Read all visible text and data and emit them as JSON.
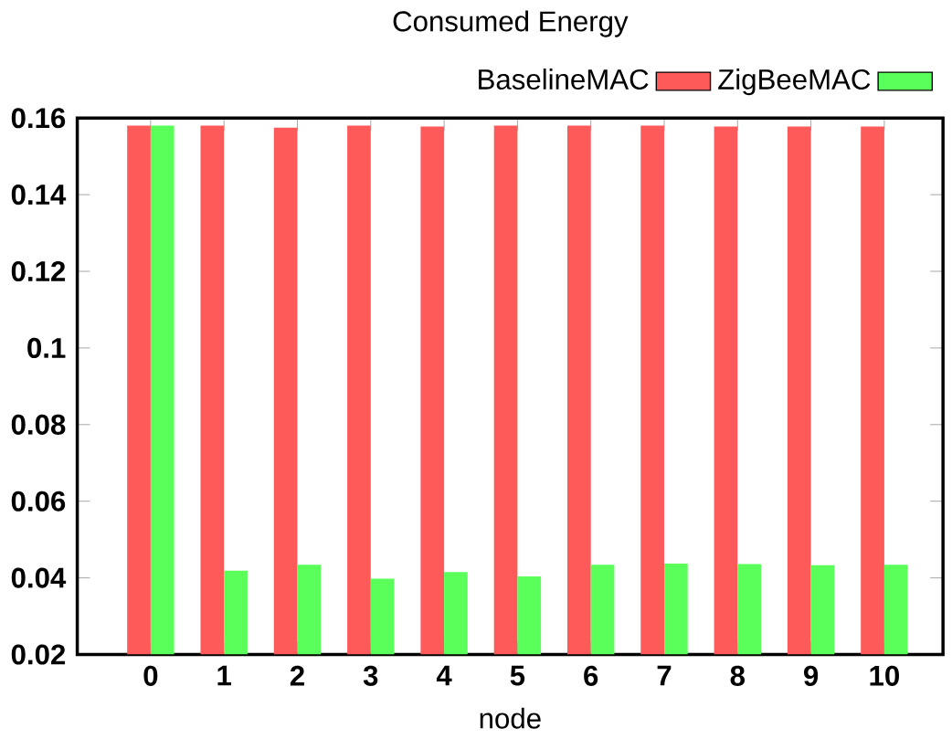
{
  "chart_data": {
    "type": "bar",
    "title": "Consumed Energy",
    "xlabel": "node",
    "categories": [
      "0",
      "1",
      "2",
      "3",
      "4",
      "5",
      "6",
      "7",
      "8",
      "9",
      "10"
    ],
    "series": [
      {
        "name": "BaselineMAC",
        "color": "#ff5a5a",
        "values": [
          0.158,
          0.158,
          0.1575,
          0.158,
          0.1578,
          0.158,
          0.158,
          0.158,
          0.1578,
          0.1578,
          0.1578
        ]
      },
      {
        "name": "ZigBeeMAC",
        "color": "#5aff5a",
        "values": [
          0.158,
          0.0419,
          0.0434,
          0.0398,
          0.0415,
          0.0404,
          0.0434,
          0.0437,
          0.0436,
          0.0433,
          0.0434
        ]
      }
    ],
    "ylim": [
      0.02,
      0.16
    ],
    "yticks": [
      0.02,
      0.04,
      0.06,
      0.08,
      0.1,
      0.12,
      0.14,
      0.16
    ],
    "grid": false,
    "legend": "top right"
  }
}
